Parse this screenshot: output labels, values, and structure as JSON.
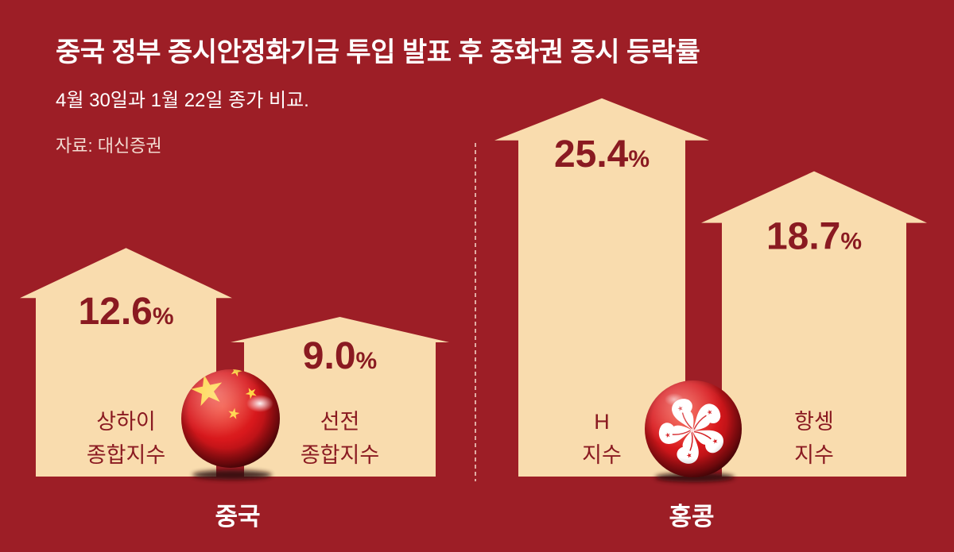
{
  "colors": {
    "background": "#9D1E26",
    "arrow_fill": "#F9DCAE",
    "value_text": "#8A1A21",
    "category_text": "#8A1A21",
    "heading_text": "#FFFFFF",
    "source_text": "#F3DCD2",
    "divider": "#F0CFC4"
  },
  "chart_data": {
    "type": "bar",
    "title": "중국 정부 증시안정화기금 투입 발표 후 중화권 증시 등락률",
    "subtitle": "4월 30일과 1월 22일 종가 비교.",
    "source": "자료: 대신증권",
    "categories": [
      "상하이 종합지수",
      "선전 종합지수",
      "H 지수",
      "항셍 지수"
    ],
    "values": [
      12.6,
      9.0,
      25.4,
      18.7
    ],
    "unit": "%",
    "groups": [
      {
        "name": "중국",
        "icon": "china-flag-icon",
        "category_indices": [
          0,
          1
        ]
      },
      {
        "name": "홍콩",
        "icon": "hong-kong-flag-icon",
        "category_indices": [
          2,
          3
        ]
      }
    ],
    "grid": false,
    "legend": "none"
  }
}
